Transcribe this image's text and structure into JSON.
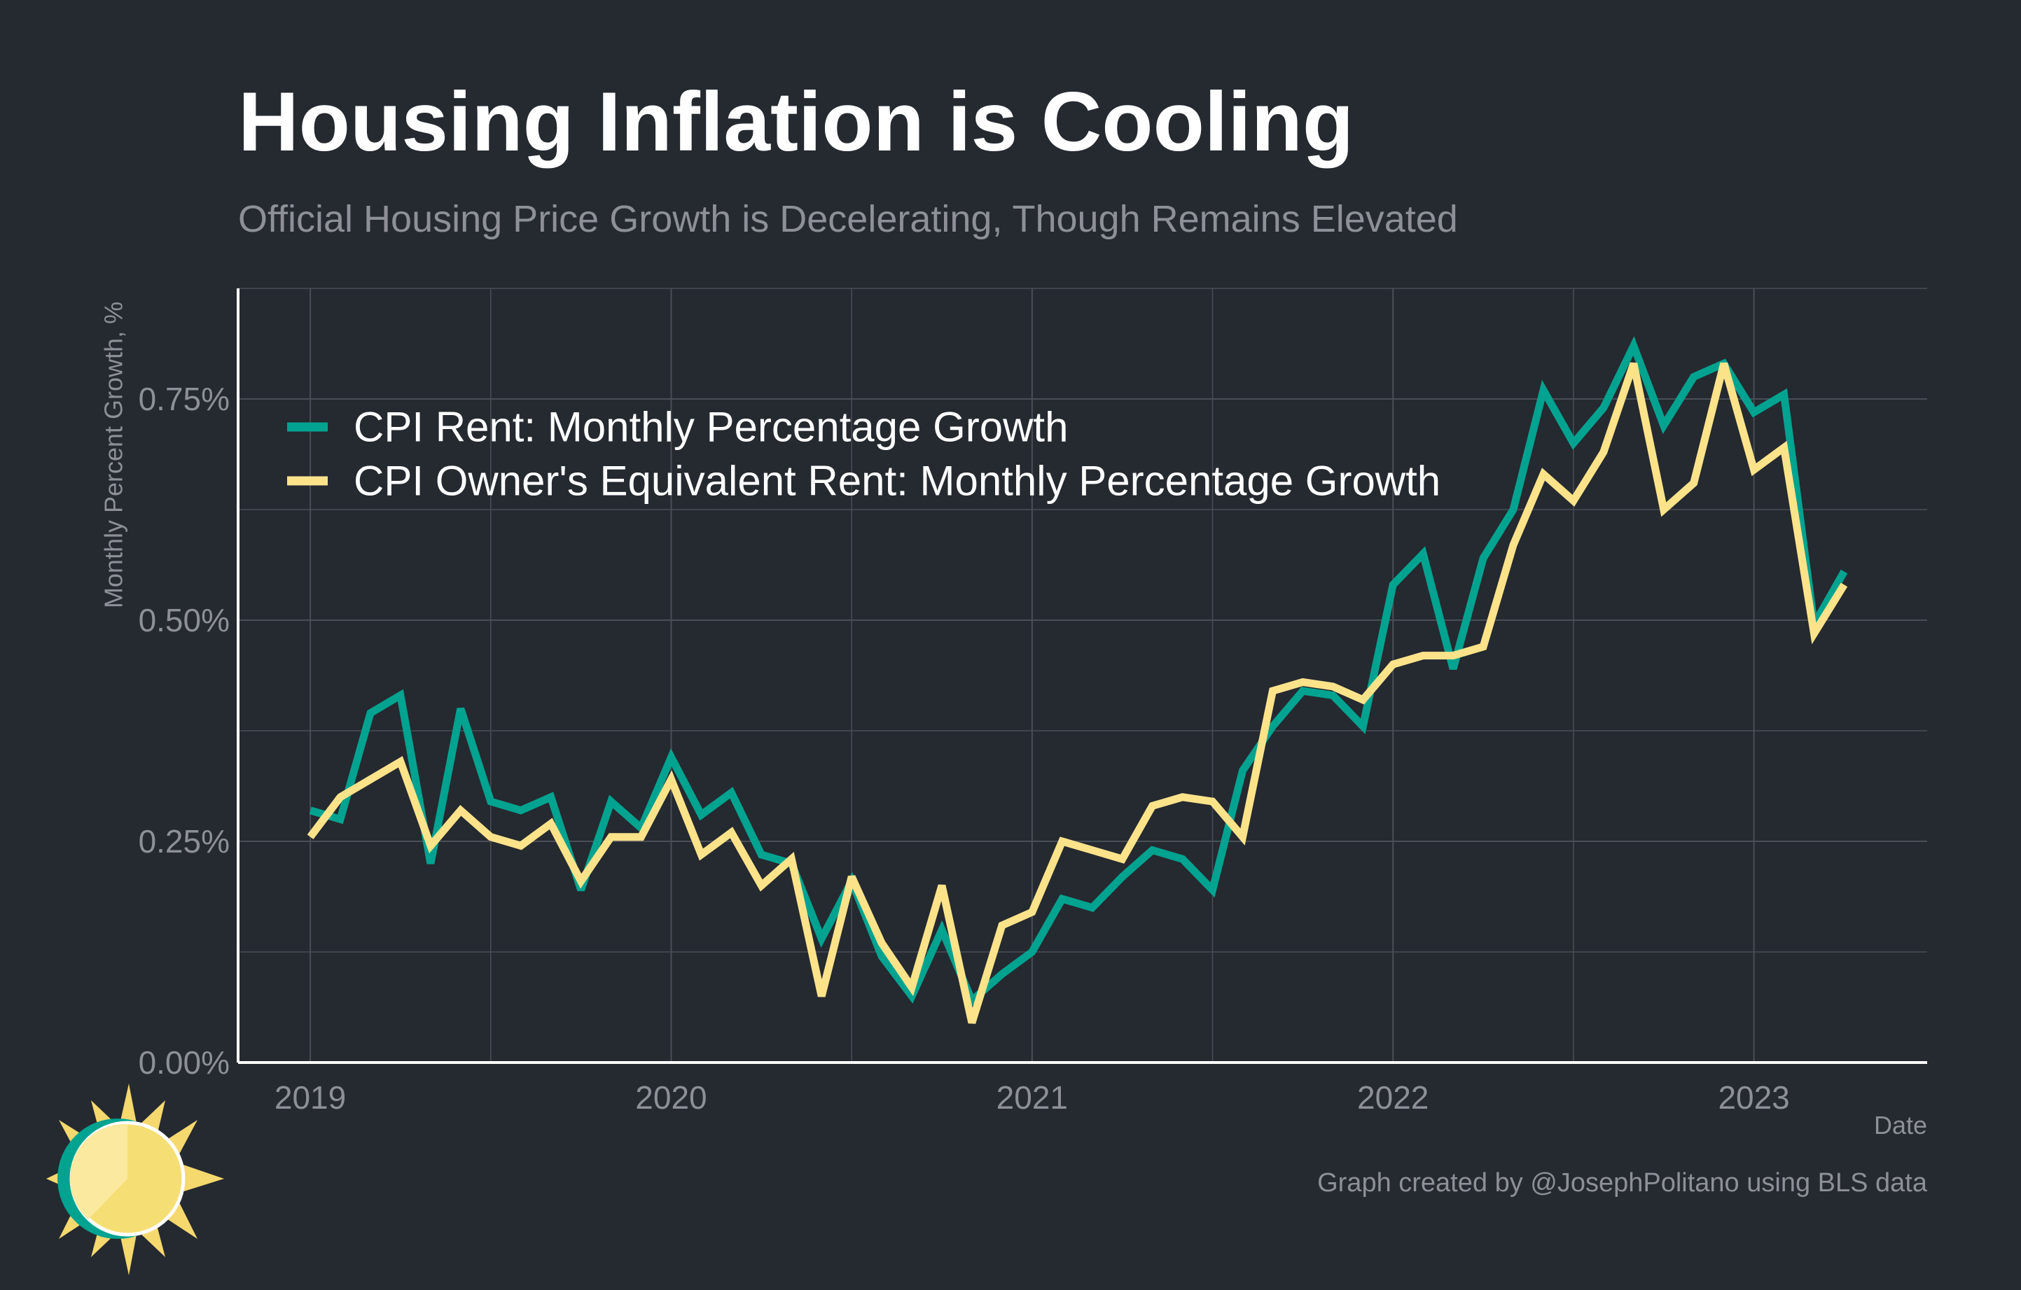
{
  "chart_data": {
    "type": "line",
    "title": "Housing Inflation is Cooling",
    "subtitle": "Official Housing Price Growth is Decelerating, Though Remains Elevated",
    "xlabel": "Date",
    "ylabel": "Monthly Percent Growth, %",
    "caption": "Graph created by @JosephPolitano using BLS data",
    "x_start": "2019-01",
    "x_ticks": [
      "2019",
      "2020",
      "2021",
      "2022",
      "2023"
    ],
    "y_ticks": [
      "0.00%",
      "0.25%",
      "0.50%",
      "0.75%"
    ],
    "ylim": [
      0,
      0.875
    ],
    "xlim": [
      2018.8,
      2023.48
    ],
    "grid": true,
    "legend_position": "top-left",
    "series": [
      {
        "name": "CPI Rent: Monthly Percentage Growth",
        "color": "#00a390",
        "values": [
          0.285,
          0.275,
          0.395,
          0.415,
          0.225,
          0.4,
          0.295,
          0.285,
          0.3,
          0.195,
          0.295,
          0.265,
          0.345,
          0.28,
          0.305,
          0.235,
          0.225,
          0.14,
          0.205,
          0.12,
          0.075,
          0.15,
          0.07,
          0.1,
          0.125,
          0.185,
          0.175,
          0.21,
          0.24,
          0.23,
          0.195,
          0.33,
          0.38,
          0.42,
          0.415,
          0.38,
          0.54,
          0.575,
          0.445,
          0.57,
          0.625,
          0.76,
          0.7,
          0.74,
          0.81,
          0.72,
          0.775,
          0.79,
          0.735,
          0.755,
          0.495,
          0.555
        ]
      },
      {
        "name": "CPI Owner's Equivalent Rent: Monthly Percentage Growth",
        "color": "#fce38a",
        "values": [
          0.255,
          0.3,
          0.32,
          0.34,
          0.245,
          0.285,
          0.255,
          0.245,
          0.27,
          0.205,
          0.255,
          0.255,
          0.32,
          0.235,
          0.26,
          0.2,
          0.23,
          0.075,
          0.21,
          0.135,
          0.085,
          0.2,
          0.045,
          0.155,
          0.17,
          0.25,
          0.24,
          0.23,
          0.29,
          0.3,
          0.295,
          0.255,
          0.42,
          0.43,
          0.425,
          0.41,
          0.45,
          0.46,
          0.46,
          0.47,
          0.585,
          0.665,
          0.635,
          0.69,
          0.79,
          0.625,
          0.655,
          0.79,
          0.67,
          0.695,
          0.485,
          0.54
        ]
      }
    ]
  }
}
